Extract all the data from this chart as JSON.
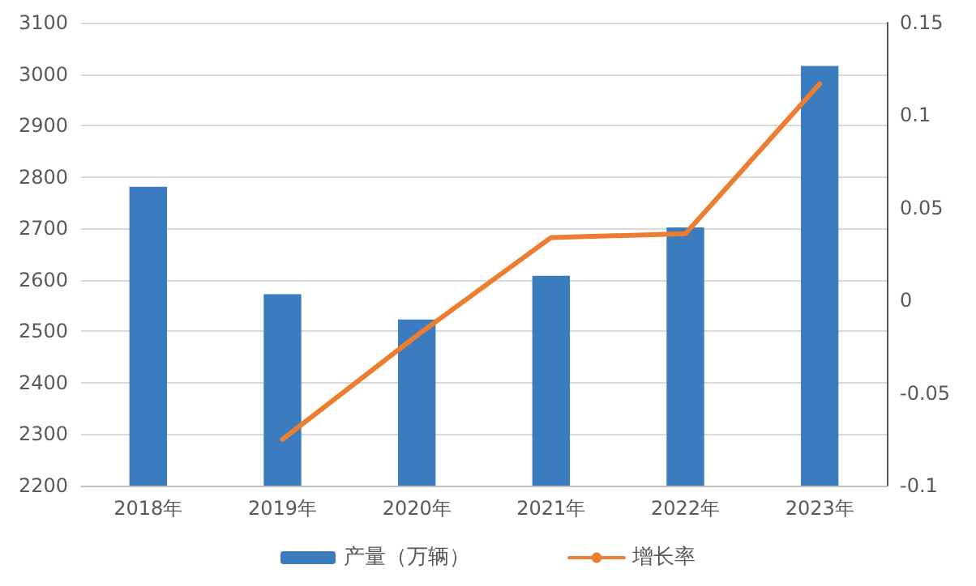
{
  "chart_data": {
    "type": "bar",
    "categories": [
      "2018年",
      "2019年",
      "2020年",
      "2021年",
      "2022年",
      "2023年"
    ],
    "series": [
      {
        "name": "产量（万辆）",
        "color": "#3b7cbf",
        "values": [
          2781,
          2572,
          2523,
          2608,
          2702,
          3016
        ]
      },
      {
        "name": "增长率",
        "type": "line",
        "axis": "y2",
        "color": "#ed7d31",
        "values": [
          null,
          -0.075,
          -0.019,
          0.034,
          0.036,
          0.117
        ]
      }
    ],
    "ylim": [
      2200,
      3100
    ],
    "yticks": [
      2200,
      2300,
      2400,
      2500,
      2600,
      2700,
      2800,
      2900,
      3000,
      3100
    ],
    "y2lim": [
      -0.1,
      0.15
    ],
    "y2ticks": [
      -0.1,
      -0.05,
      0,
      0.05,
      0.1,
      0.15
    ],
    "grid": "y",
    "legend": "bottom",
    "marker": "none",
    "line_style": "solid"
  }
}
